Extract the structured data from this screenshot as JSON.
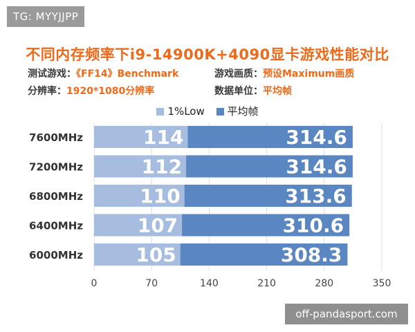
{
  "watermark_top": "TG: MYYJJPP",
  "watermark_bottom": "off-pandasport.com",
  "info": {
    "game_label": "测试游戏：",
    "game_value": "《FF14》Benchmark",
    "quality_label": "游戏画质：",
    "quality_value": "预设Maximum画质",
    "resolution_label": "分辨率：",
    "resolution_value": "1920*1080分辨率",
    "unit_label": "数据单位：",
    "unit_value": "平均帧"
  },
  "colors": {
    "low": "#a6bde0",
    "avg": "#5a86c2",
    "title": "#ee6a1b"
  },
  "chart_data": {
    "type": "bar",
    "orientation": "horizontal",
    "stacked": "overlay",
    "title": "不同内存频率下i9-14900K+4090显卡游戏性能对比",
    "categories": [
      "7600MHz",
      "7200MHz",
      "6800MHz",
      "6400MHz",
      "6000MHz"
    ],
    "series": [
      {
        "name": "1%Low",
        "values": [
          114,
          112,
          110,
          107,
          105
        ]
      },
      {
        "name": "平均帧",
        "values": [
          314.6,
          314.6,
          313.6,
          310.6,
          308.3
        ]
      }
    ],
    "xlim": [
      0,
      350
    ],
    "xticks": [
      0,
      70,
      140,
      210,
      280,
      350
    ],
    "grid": true,
    "legend": "top-center"
  }
}
